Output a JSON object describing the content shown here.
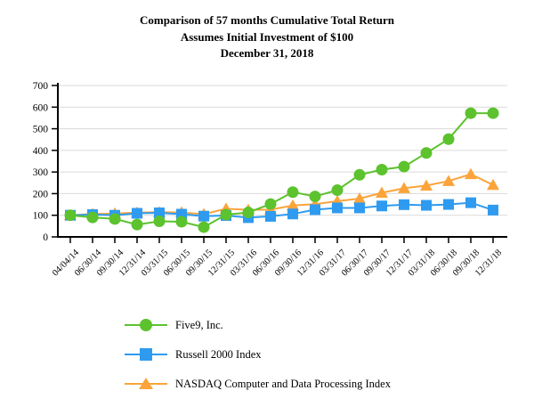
{
  "title": {
    "line1": "Comparison of 57 months Cumulative Total Return",
    "line2": "Assumes Initial Investment of $100",
    "line3": "December 31, 2018"
  },
  "chart_data": {
    "type": "line",
    "categories": [
      "04/04/14",
      "06/30/14",
      "09/30/14",
      "12/31/14",
      "03/31/15",
      "06/30/15",
      "09/30/15",
      "12/31/15",
      "03/31/16",
      "06/30/16",
      "09/30/16",
      "12/31/16",
      "03/31/17",
      "06/30/17",
      "09/30/17",
      "12/31/17",
      "03/31/18",
      "06/30/18",
      "09/30/18",
      "12/31/18"
    ],
    "series": [
      {
        "name": "Five9, Inc.",
        "marker": "circle",
        "color": "#5CC22E",
        "values": [
          100,
          90,
          83,
          57,
          72,
          70,
          45,
          103,
          113,
          152,
          207,
          187,
          216,
          287,
          311,
          325,
          388,
          452,
          572,
          572
        ]
      },
      {
        "name": "Russell 2000 Index",
        "marker": "square",
        "color": "#2E9BF0",
        "values": [
          100,
          103,
          100,
          109,
          111,
          105,
          96,
          99,
          89,
          95,
          106,
          126,
          134,
          134,
          143,
          149,
          146,
          150,
          158,
          124
        ]
      },
      {
        "name": "NASDAQ Computer and Data Processing Index",
        "marker": "triangle",
        "color": "#FBA43B",
        "values": [
          100,
          106,
          108,
          112,
          114,
          113,
          105,
          130,
          125,
          126,
          145,
          151,
          165,
          177,
          204,
          225,
          237,
          258,
          290,
          240
        ]
      }
    ],
    "ylim": [
      0,
      700
    ],
    "y_ticks": [
      0,
      100,
      200,
      300,
      400,
      500,
      600,
      700
    ],
    "grid": "horizontal",
    "legend_position": "bottom-left",
    "axis_color": "#000000",
    "grid_color": "#DADADA"
  }
}
